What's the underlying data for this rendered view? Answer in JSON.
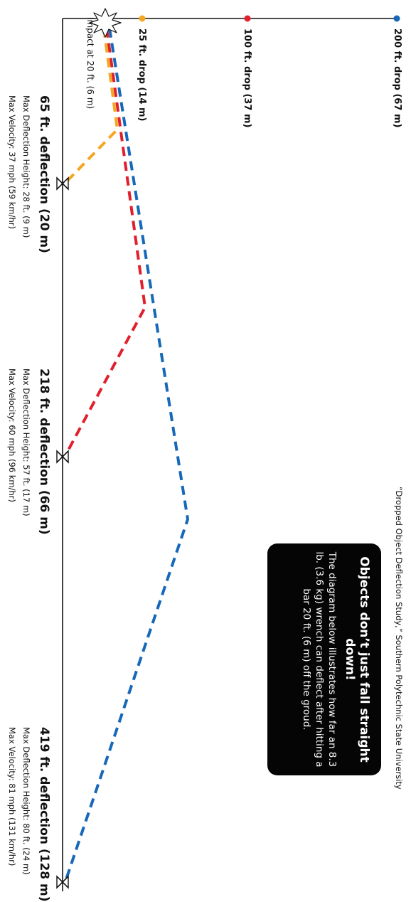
{
  "colors": {
    "ground": "#111111",
    "drop_25": "#f5a623",
    "drop_100": "#e0202d",
    "drop_200": "#1668b8",
    "callout_bg": "#050505"
  },
  "source": "“Dropped Object Deflection Study,” Southern Polytechnic State University",
  "callout": {
    "title": "Objects don’t just fall straight down!",
    "body": "The diagram below illustrates how far an 8.3 lb. (3.6 kg) wrench can deflect after hitting a bar 20 ft. (6 m) off the groud."
  },
  "impact": {
    "label": "Impact at 20 ft. (6 m)",
    "icon": "burst-icon"
  },
  "drops": [
    {
      "label": "25 ft. drop (14 m)",
      "color": "#f5a623"
    },
    {
      "label": "100 ft. drop (37 m)",
      "color": "#e0202d"
    },
    {
      "label": "200 ft. drop (67 m)",
      "color": "#1668b8"
    }
  ],
  "deflections": [
    {
      "title": "65 ft. deflection (20 m)",
      "height": "Max Deflection Height: 28 ft. (9 m)",
      "velocity": "Max Velocity: 37 mph (59 km/hr)",
      "color": "#f5a623"
    },
    {
      "title": "218 ft. deflection (66 m)",
      "height": "Max Deflection Height: 57 ft. (17 m)",
      "velocity": "Max Velocity: 60 mph (96 km/hr)",
      "color": "#e0202d"
    },
    {
      "title": "419 ft. deflection (128 m)",
      "height": "Max Deflection Height: 80 ft. (24 m)",
      "velocity": "Max Velocity: 81 mph (131 km/hr)",
      "color": "#1668b8"
    }
  ]
}
